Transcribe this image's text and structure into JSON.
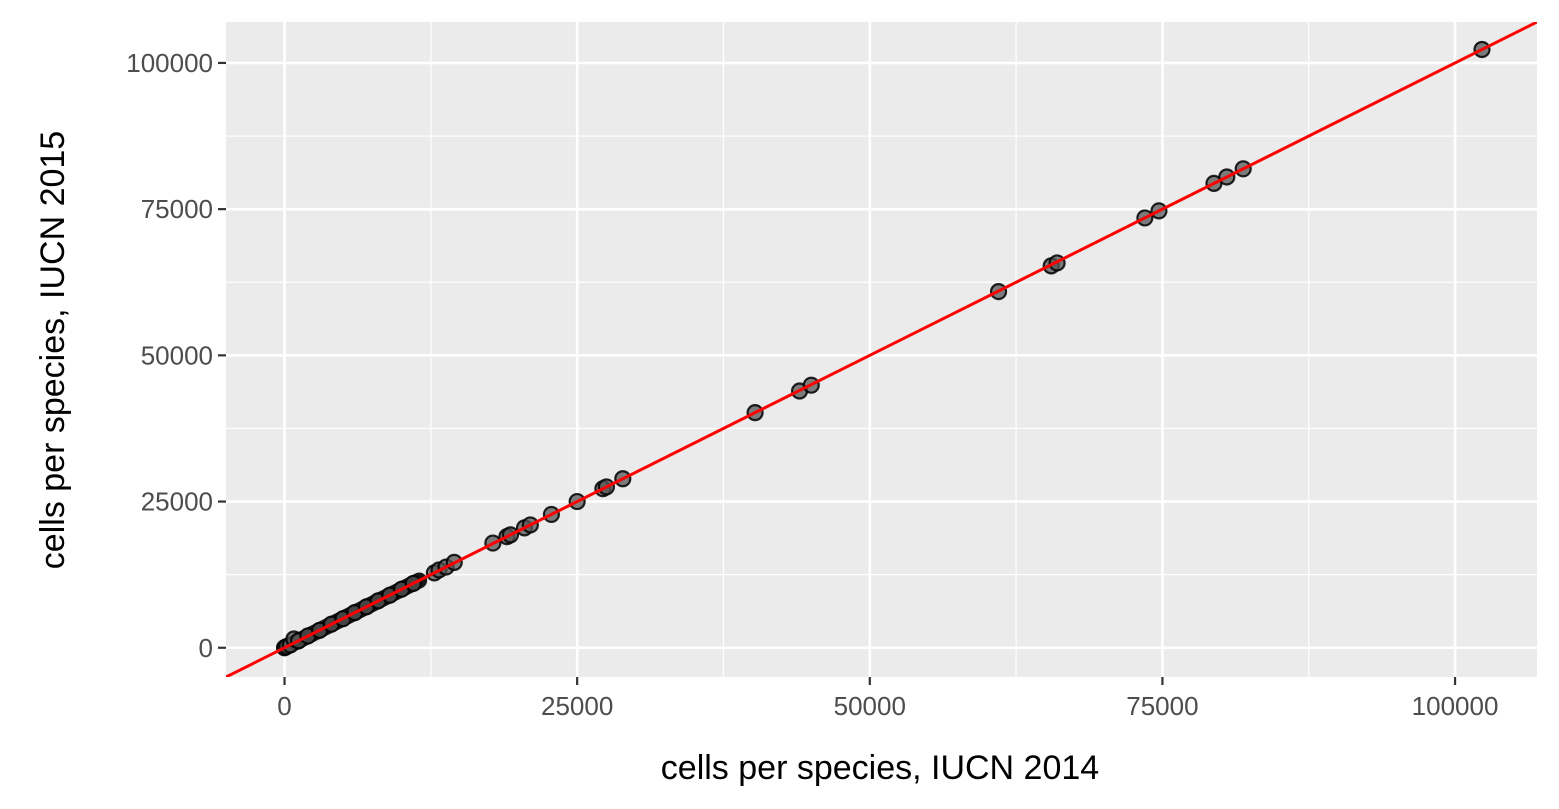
{
  "chart_data": {
    "type": "scatter",
    "title": "",
    "xlabel": "cells per species, IUCN 2014",
    "ylabel": "cells per species, IUCN 2015",
    "xlim": [
      -5000,
      107000
    ],
    "ylim": [
      -5000,
      107000
    ],
    "x_ticks": [
      0,
      25000,
      50000,
      75000,
      100000
    ],
    "y_ticks": [
      0,
      25000,
      50000,
      75000,
      100000
    ],
    "x_tick_labels": [
      "0",
      "25000",
      "50000",
      "75000",
      "100000"
    ],
    "y_tick_labels": [
      "0",
      "25000",
      "50000",
      "75000",
      "100000"
    ],
    "grid": true,
    "legend": "none",
    "reference_line": {
      "slope": 1,
      "intercept": 0,
      "color": "#ff0000"
    },
    "colors": {
      "panel": "#ebebeb",
      "grid": "#ffffff",
      "point_fill": "#555555",
      "point_stroke": "#000000",
      "line": "#ff0000"
    },
    "dense_band": {
      "x_from": 0,
      "x_to": 11500,
      "note": "many overlapping points along y = x"
    },
    "series": [
      {
        "points": [
          [
            0,
            0
          ],
          [
            200,
            220
          ],
          [
            500,
            480
          ],
          [
            800,
            1500
          ],
          [
            1200,
            1180
          ],
          [
            2000,
            2020
          ],
          [
            3000,
            2980
          ],
          [
            4000,
            4030
          ],
          [
            5000,
            4970
          ],
          [
            6000,
            6010
          ],
          [
            7000,
            7000
          ],
          [
            8000,
            8020
          ],
          [
            9000,
            8990
          ],
          [
            10000,
            10010
          ],
          [
            11000,
            11000
          ],
          [
            12800,
            12800
          ],
          [
            13200,
            13300
          ],
          [
            13800,
            13800
          ],
          [
            14500,
            14600
          ],
          [
            17800,
            17900
          ],
          [
            19000,
            19000
          ],
          [
            19300,
            19300
          ],
          [
            20500,
            20500
          ],
          [
            21000,
            21000
          ],
          [
            22800,
            22800
          ],
          [
            25000,
            25000
          ],
          [
            27200,
            27200
          ],
          [
            27500,
            27500
          ],
          [
            28900,
            28900
          ],
          [
            40200,
            40200
          ],
          [
            44000,
            43900
          ],
          [
            45000,
            44900
          ],
          [
            61000,
            60900
          ],
          [
            65500,
            65300
          ],
          [
            66000,
            65800
          ],
          [
            73500,
            73500
          ],
          [
            74700,
            74700
          ],
          [
            79400,
            79400
          ],
          [
            80500,
            80500
          ],
          [
            81900,
            81900
          ],
          [
            102300,
            102300
          ]
        ]
      }
    ]
  }
}
